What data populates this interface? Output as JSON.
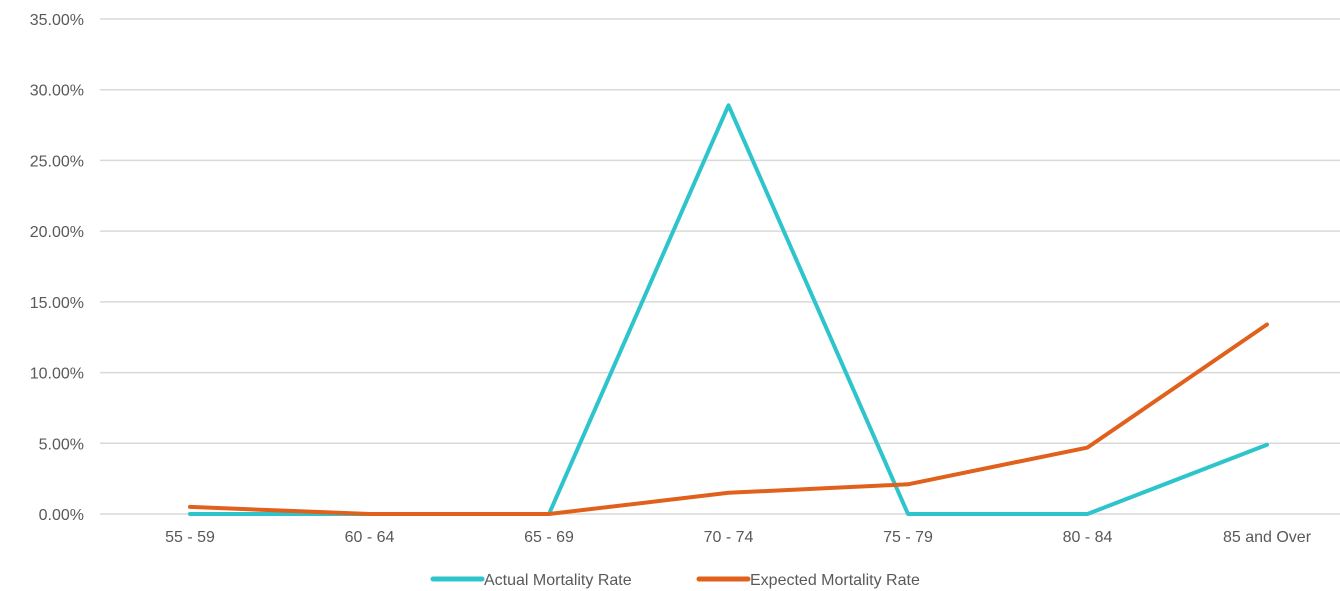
{
  "chart_data": {
    "type": "line",
    "categories": [
      "55 - 59",
      "60 - 64",
      "65 - 69",
      "70 - 74",
      "75 - 79",
      "80 - 84",
      "85 and Over"
    ],
    "series": [
      {
        "name": "Actual Mortality Rate",
        "color": "#2ec4cc",
        "values": [
          0.0,
          0.0,
          0.0,
          28.9,
          0.0,
          0.0,
          4.9
        ]
      },
      {
        "name": "Expected Mortality Rate",
        "color": "#e0601c",
        "values": [
          0.5,
          0.0,
          0.0,
          1.5,
          2.1,
          4.7,
          13.4
        ]
      }
    ],
    "y_unit": "percent",
    "ylim": [
      0,
      35
    ],
    "yticks": [
      "0.00%",
      "5.00%",
      "10.00%",
      "15.00%",
      "20.00%",
      "25.00%",
      "30.00%",
      "35.00%"
    ],
    "grid": "horizontal",
    "legend": "bottom",
    "title": "",
    "xlabel": "",
    "ylabel": ""
  }
}
